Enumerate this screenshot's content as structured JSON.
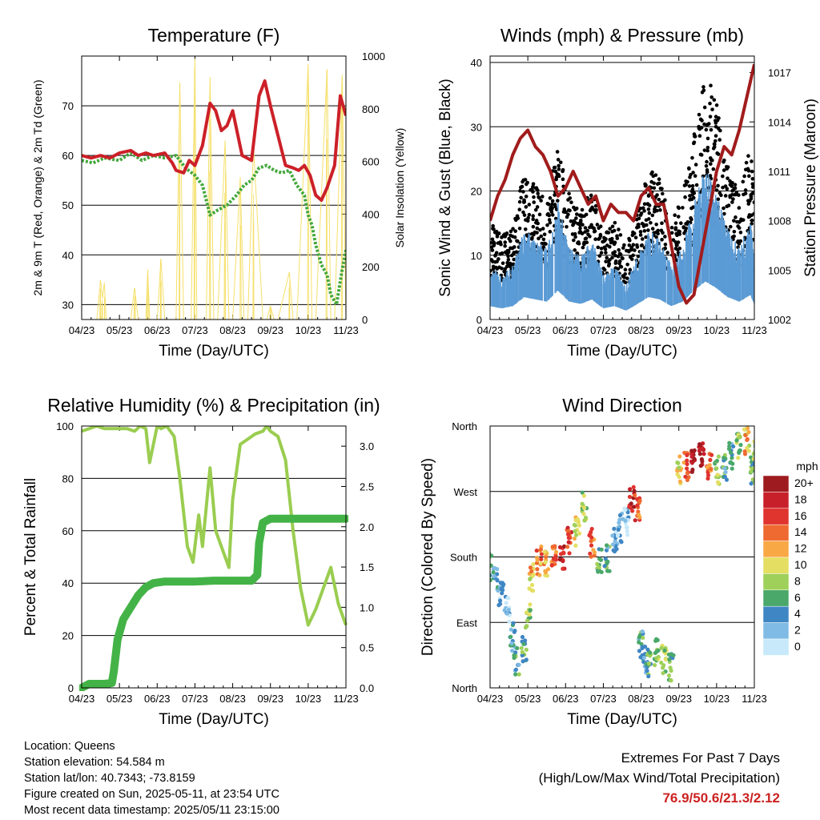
{
  "colors": {
    "temperature": "#cc2028",
    "dewpoint": "#44a83c",
    "insolation": "#f5e06a",
    "gust": "#000000",
    "wind": "#5b9bd5",
    "pressure": "#a11c1c",
    "humidity": "#9acd50",
    "rainfall": "#44b347",
    "extremes": "#cc2222"
  },
  "chart_data": [
    {
      "id": "temperature",
      "type": "line",
      "title": "Temperature (F)",
      "xlabel": "Time (Day/UTC)",
      "ylabel": "2m & 9m T (Red, Orange) & 2m Td (Green)",
      "y2label": "Solar Insolation (Yellow)",
      "xticks": [
        "04/23",
        "05/23",
        "06/23",
        "07/23",
        "08/23",
        "09/23",
        "10/23",
        "11/23"
      ],
      "ylim": [
        27,
        80
      ],
      "yticks": [
        30,
        40,
        50,
        60,
        70
      ],
      "y2lim": [
        0,
        1000
      ],
      "y2ticks": [
        0,
        200,
        400,
        600,
        800,
        1000
      ],
      "grid": true,
      "series": [
        {
          "name": "2m & 9m T",
          "axis": "left",
          "x": [
            0,
            0.25,
            0.5,
            0.75,
            1,
            1.3,
            1.5,
            1.7,
            1.9,
            2.2,
            2.4,
            2.5,
            2.7,
            2.85,
            3,
            3.2,
            3.4,
            3.55,
            3.7,
            3.85,
            4.0,
            4.25,
            4.5,
            4.7,
            4.85,
            5.0,
            5.2,
            5.4,
            5.6,
            5.75,
            5.9,
            6.05,
            6.2,
            6.35,
            6.5,
            6.7,
            6.85,
            7.0
          ],
          "y": [
            60,
            59.5,
            60,
            59.5,
            60.5,
            61,
            60,
            60.5,
            60,
            60.5,
            58.5,
            57,
            56.5,
            59,
            58,
            62,
            70.5,
            69,
            65,
            66,
            69,
            60,
            59,
            72,
            75,
            70,
            64,
            58,
            57.5,
            57,
            58,
            56,
            52,
            51,
            53.5,
            58,
            72,
            68
          ]
        },
        {
          "name": "2m Td",
          "axis": "left",
          "x": [
            0,
            0.3,
            0.6,
            1,
            1.3,
            1.6,
            1.9,
            2.2,
            2.5,
            2.75,
            3.0,
            3.2,
            3.4,
            3.6,
            3.85,
            4.1,
            4.3,
            4.5,
            4.7,
            4.9,
            5.1,
            5.3,
            5.5,
            5.7,
            5.9,
            6.0,
            6.1,
            6.2,
            6.35,
            6.5,
            6.6,
            6.75,
            6.9,
            7.0
          ],
          "y": [
            59,
            58.5,
            59.5,
            59,
            60.5,
            59,
            60,
            59.5,
            60,
            57.5,
            56,
            54,
            48,
            49,
            50,
            52,
            54,
            55,
            57.5,
            58,
            57,
            56.5,
            57,
            54,
            52,
            48,
            46,
            42,
            38,
            36,
            32,
            30,
            37,
            41
          ]
        },
        {
          "name": "Solar Insolation",
          "axis": "right",
          "x": [
            0.4,
            0.5,
            0.55,
            0.6,
            0.65,
            1.3,
            1.4,
            1.5,
            1.7,
            1.75,
            1.8,
            2.0,
            2.1,
            2.2,
            2.5,
            2.6,
            2.7,
            2.9,
            3.0,
            3.05,
            3.3,
            3.4,
            3.5,
            3.6,
            3.8,
            3.9,
            4.0,
            4.2,
            4.3,
            4.4,
            4.55,
            4.8,
            4.9,
            5.0,
            5.1,
            5.2,
            5.5,
            5.6,
            5.7,
            6.0,
            6.1,
            6.2,
            6.5,
            6.6,
            6.7,
            6.9,
            7.0
          ],
          "y": [
            0,
            150,
            80,
            140,
            0,
            0,
            120,
            0,
            0,
            190,
            0,
            0,
            230,
            0,
            0,
            900,
            0,
            0,
            990,
            0,
            0,
            920,
            0,
            0,
            680,
            0,
            0,
            540,
            0,
            0,
            660,
            0,
            0,
            50,
            0,
            0,
            180,
            0,
            0,
            970,
            0,
            0,
            950,
            0,
            0,
            930,
            0
          ]
        }
      ]
    },
    {
      "id": "winds",
      "type": "scatter",
      "title": "Winds (mph) & Pressure (mb)",
      "xlabel": "Time (Day/UTC)",
      "ylabel": "Sonic Wind & Gust (Blue, Black)",
      "y2label": "Station Pressure (Maroon)",
      "xticks": [
        "04/23",
        "05/23",
        "06/23",
        "07/23",
        "08/23",
        "09/23",
        "10/23",
        "11/23"
      ],
      "ylim": [
        0,
        41
      ],
      "yticks": [
        0,
        10,
        20,
        30,
        40
      ],
      "y2lim": [
        1002,
        1018
      ],
      "y2ticks": [
        1002,
        1005,
        1008,
        1011,
        1014,
        1017
      ],
      "grid": true,
      "series": [
        {
          "name": "Gust",
          "axis": "left",
          "x": [
            0,
            0.3,
            0.6,
            0.9,
            1.2,
            1.5,
            1.8,
            2.1,
            2.4,
            2.7,
            3.0,
            3.3,
            3.6,
            3.9,
            4.2,
            4.5,
            4.8,
            5.1,
            5.4,
            5.7,
            6.0,
            6.3,
            6.6,
            6.9,
            7.0
          ],
          "y": [
            12,
            10,
            11,
            18,
            16,
            14,
            21,
            15,
            13,
            16,
            10,
            12,
            9,
            13,
            18,
            17,
            12,
            15,
            22,
            30,
            26,
            19,
            15,
            21,
            14
          ]
        },
        {
          "name": "Sonic Wind",
          "axis": "left",
          "x": [
            0,
            0.3,
            0.6,
            0.9,
            1.2,
            1.5,
            1.8,
            2.1,
            2.4,
            2.7,
            3.0,
            3.3,
            3.6,
            3.9,
            4.2,
            4.5,
            4.8,
            5.1,
            5.4,
            5.7,
            6.0,
            6.3,
            6.6,
            6.9,
            7.0
          ],
          "y": [
            6,
            5,
            6,
            10,
            9,
            8,
            13,
            8,
            7,
            9,
            5,
            6,
            4,
            7,
            10,
            9,
            6,
            8,
            13,
            17,
            14,
            10,
            8,
            11,
            7
          ]
        },
        {
          "name": "Station Pressure",
          "axis": "right",
          "x": [
            0,
            0.2,
            0.4,
            0.6,
            0.8,
            1.0,
            1.2,
            1.4,
            1.6,
            1.8,
            2.0,
            2.2,
            2.4,
            2.6,
            2.8,
            3.0,
            3.2,
            3.4,
            3.6,
            3.8,
            4.0,
            4.2,
            4.4,
            4.6,
            4.8,
            5.0,
            5.2,
            5.4,
            5.6,
            5.8,
            6.0,
            6.2,
            6.4,
            6.6,
            6.8,
            7.0
          ],
          "y": [
            1008,
            1009.5,
            1010.5,
            1012,
            1013,
            1013.5,
            1012.5,
            1012,
            1011,
            1009.5,
            1010,
            1011,
            1010,
            1009,
            1009.5,
            1008,
            1009,
            1008.5,
            1008.5,
            1008,
            1009.5,
            1010,
            1009,
            1009,
            1006.5,
            1004,
            1003,
            1003.5,
            1006,
            1008.5,
            1011,
            1012.5,
            1012,
            1013.5,
            1015.5,
            1017.5
          ]
        }
      ]
    },
    {
      "id": "humidity",
      "type": "line",
      "title": "Relative Humidity (%) & Precipitation (in)",
      "xlabel": "Time (Day/UTC)",
      "ylabel": "Percent & Total Rainfall",
      "xticks": [
        "04/23",
        "05/23",
        "06/23",
        "07/23",
        "08/23",
        "09/23",
        "10/23",
        "11/23"
      ],
      "ylim": [
        0,
        100
      ],
      "yticks": [
        0,
        20,
        40,
        60,
        80,
        100
      ],
      "y2lim": [
        0,
        3.25
      ],
      "y2ticks": [
        "0.0",
        "0.5",
        "1.0",
        "1.5",
        "2.0",
        "2.5",
        "3.0"
      ],
      "grid": true,
      "series": [
        {
          "name": "Relative Humidity",
          "axis": "left",
          "x": [
            0,
            0.2,
            0.4,
            0.6,
            0.8,
            1.0,
            1.2,
            1.4,
            1.55,
            1.7,
            1.8,
            2.0,
            2.1,
            2.25,
            2.45,
            2.6,
            2.8,
            2.95,
            3.1,
            3.2,
            3.4,
            3.55,
            3.7,
            3.9,
            4.0,
            4.2,
            4.4,
            4.6,
            4.8,
            4.9,
            5.0,
            5.2,
            5.4,
            5.6,
            5.8,
            6.0,
            6.2,
            6.4,
            6.6,
            6.8,
            7.0
          ],
          "y": [
            98,
            99,
            100,
            99,
            99,
            99,
            99,
            98,
            100,
            99,
            86,
            100,
            99,
            100,
            96,
            80,
            54,
            48,
            66,
            54,
            84,
            60,
            54,
            46,
            72,
            93,
            95,
            97,
            98,
            100,
            98,
            96,
            87,
            60,
            38,
            24,
            30,
            38,
            46,
            32,
            24
          ]
        },
        {
          "name": "Total Rainfall",
          "axis": "right",
          "x": [
            0,
            0.2,
            0.4,
            0.6,
            0.8,
            0.85,
            0.95,
            1.1,
            1.3,
            1.5,
            1.7,
            1.9,
            2.2,
            2.5,
            3.0,
            3.5,
            4.0,
            4.5,
            4.65,
            4.7,
            4.8,
            5.0,
            5.5,
            6.0,
            6.5,
            7.0
          ],
          "y": [
            0,
            0.05,
            0.05,
            0.05,
            0.06,
            0.2,
            0.6,
            0.85,
            1.0,
            1.15,
            1.25,
            1.3,
            1.32,
            1.32,
            1.32,
            1.33,
            1.33,
            1.33,
            1.4,
            1.8,
            2.05,
            2.1,
            2.1,
            2.1,
            2.1,
            2.1
          ]
        }
      ]
    },
    {
      "id": "winddir",
      "type": "scatter",
      "title": "Wind Direction",
      "xlabel": "Time (Day/UTC)",
      "ylabel": "Direction (Colored By Speed)",
      "xticks": [
        "04/23",
        "05/23",
        "06/23",
        "07/23",
        "08/23",
        "09/23",
        "10/23",
        "11/23"
      ],
      "ylim": [
        0,
        360
      ],
      "yticks": [
        "North",
        "East",
        "South",
        "West",
        "North"
      ],
      "grid": true,
      "legend": {
        "title": "mph",
        "position": "right",
        "labels": [
          "20+",
          "18",
          "16",
          "14",
          "12",
          "10",
          "8",
          "6",
          "4",
          "2",
          "0"
        ],
        "colors": [
          "#9e1b1f",
          "#c8202a",
          "#e0342f",
          "#ef6a30",
          "#f8a844",
          "#e4df62",
          "#9fd05a",
          "#4aa86a",
          "#3f86c4",
          "#7fbbe4",
          "#c7e9fa"
        ]
      },
      "series": [
        {
          "name": "direction",
          "x": [
            0,
            0.15,
            0.3,
            0.45,
            0.6,
            0.7,
            0.9,
            1.0,
            1.1,
            1.3,
            1.5,
            1.7,
            1.9,
            2.1,
            2.3,
            2.5,
            2.7,
            2.9,
            3.1,
            3.3,
            3.45,
            3.6,
            3.75,
            3.9,
            4.0,
            4.1,
            4.2,
            4.4,
            4.6,
            4.8,
            5.0,
            5.2,
            5.4,
            5.6,
            5.8,
            6.0,
            6.2,
            6.4,
            6.6,
            6.8,
            6.95,
            7.0
          ],
          "y": [
            165,
            150,
            130,
            110,
            70,
            35,
            50,
            95,
            150,
            175,
            170,
            180,
            175,
            200,
            215,
            250,
            200,
            175,
            180,
            200,
            220,
            230,
            260,
            250,
            60,
            40,
            35,
            50,
            40,
            30,
            300,
            305,
            310,
            320,
            305,
            300,
            305,
            320,
            335,
            340,
            300,
            320
          ],
          "speed": [
            6,
            4,
            3,
            2,
            4,
            5,
            6,
            8,
            11,
            13,
            12,
            14,
            18,
            16,
            10,
            8,
            14,
            6,
            5,
            3,
            2,
            1,
            18,
            15,
            5,
            4,
            6,
            7,
            8,
            6,
            10,
            15,
            20,
            19,
            14,
            8,
            5,
            4,
            8,
            11,
            6,
            7
          ]
        }
      ]
    }
  ],
  "info": {
    "location": "Location: Queens",
    "elevation": "Station elevation: 54.584 m",
    "latlon": "Station lat/lon: 40.7343; -73.8159",
    "created": "Figure created on Sun, 2025-05-11, at 23:54 UTC",
    "recent": "Most recent data timestamp: 2025/05/11 23:15:00"
  },
  "extremes": {
    "title": "Extremes For Past 7 Days",
    "subtitle": "(High/Low/Max Wind/Total Precipitation)",
    "values": "76.9/50.6/21.3/2.12"
  }
}
